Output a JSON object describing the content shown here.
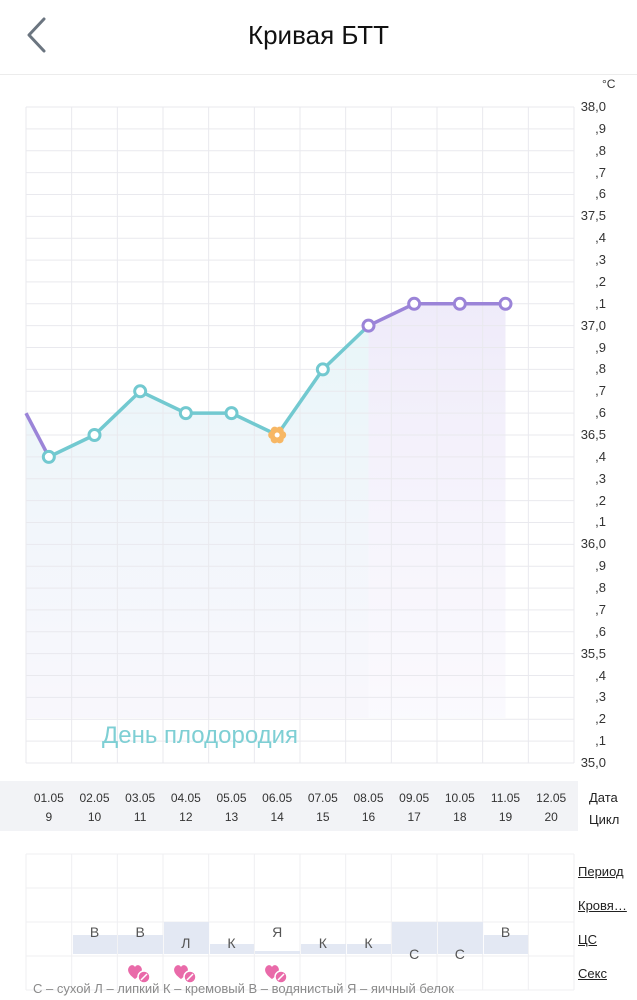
{
  "header": {
    "title": "Кривая БТТ",
    "back_icon": "chevron-left-icon"
  },
  "chart": {
    "unit": "°C",
    "fertile_label": "День плодородия",
    "colors": {
      "fertile_line": "#72c9d0",
      "post_line": "#9b84d8",
      "ovulation_marker": "#f7b764",
      "grid": "#e9e9ee"
    }
  },
  "y_ticks": [
    "38,0",
    ",9",
    ",8",
    ",7",
    ",6",
    "37,5",
    ",4",
    ",3",
    ",2",
    ",1",
    "37,0",
    ",9",
    ",8",
    ",7",
    ",6",
    "36,5",
    ",4",
    ",3",
    ",2",
    ",1",
    "36,0",
    ",9",
    ",8",
    ",7",
    ",6",
    "35,5",
    ",4",
    ",3",
    ",2",
    ",1",
    "35,0"
  ],
  "dates": {
    "date_label": "Дата",
    "cycle_label": "Цикл",
    "items": [
      {
        "date": "01.05",
        "cycle": "9"
      },
      {
        "date": "02.05",
        "cycle": "10"
      },
      {
        "date": "03.05",
        "cycle": "11"
      },
      {
        "date": "04.05",
        "cycle": "12"
      },
      {
        "date": "05.05",
        "cycle": "13"
      },
      {
        "date": "06.05",
        "cycle": "14"
      },
      {
        "date": "07.05",
        "cycle": "15"
      },
      {
        "date": "08.05",
        "cycle": "16"
      },
      {
        "date": "09.05",
        "cycle": "17"
      },
      {
        "date": "10.05",
        "cycle": "18"
      },
      {
        "date": "11.05",
        "cycle": "19"
      },
      {
        "date": "12.05",
        "cycle": "20"
      }
    ]
  },
  "tracker": {
    "rows": {
      "period": "Период",
      "bleeding": "Кровя…",
      "cs": "ЦС",
      "sex": "Секс"
    },
    "cs_values": [
      "",
      "В",
      "В",
      "Л",
      "К",
      "Я",
      "К",
      "К",
      "С",
      "С",
      "В",
      ""
    ],
    "sex_days": [
      2,
      3,
      5
    ],
    "legend": "С – сухой Л – липкий К – кремовый В – водянистый Я – яичный белок"
  },
  "chart_data": {
    "type": "line",
    "title": "Кривая БТТ",
    "xlabel": "Дата / Цикл",
    "ylabel": "°C",
    "ylim": [
      35.0,
      38.0
    ],
    "grid": true,
    "categories": [
      "01.05",
      "02.05",
      "03.05",
      "04.05",
      "05.05",
      "06.05",
      "07.05",
      "08.05",
      "09.05",
      "10.05",
      "11.05",
      "12.05"
    ],
    "cycle_days": [
      9,
      10,
      11,
      12,
      13,
      14,
      15,
      16,
      17,
      18,
      19,
      20
    ],
    "series": [
      {
        "name": "BBT",
        "values": [
          36.4,
          36.5,
          36.7,
          36.6,
          36.6,
          36.5,
          36.8,
          37.0,
          37.1,
          37.1,
          37.1,
          null
        ]
      }
    ],
    "annotations": [
      {
        "label": "День плодородия",
        "range": [
          "01.05",
          "08.05"
        ]
      },
      {
        "label": "ovulation",
        "at": "06.05",
        "marker": "flower"
      }
    ]
  }
}
